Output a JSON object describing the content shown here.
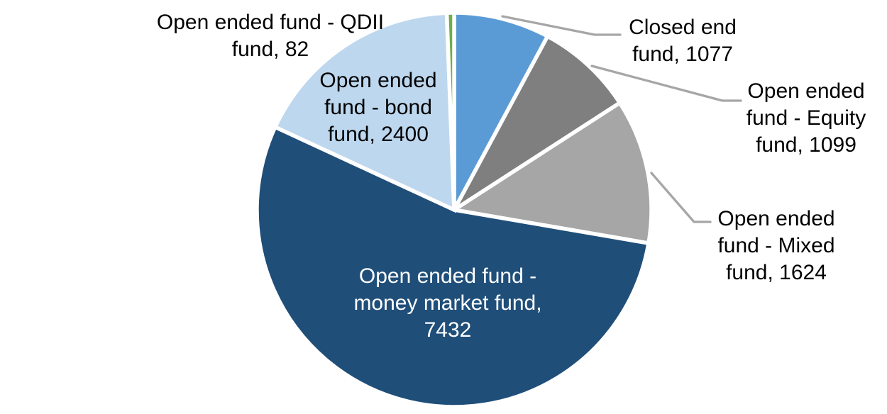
{
  "chart_data": {
    "type": "pie",
    "title": "",
    "legend": "none",
    "background": "#FFFFFF",
    "slice_border_color": "#FFFFFF",
    "leader_line_color": "#A6A6A6",
    "start_angle_deg": 0,
    "direction": "clockwise",
    "total": 13714,
    "series": [
      {
        "key": "closed-end-fund",
        "label": "Closed end fund",
        "value": 1077,
        "color": "#5B9BD5",
        "label_placement": "outside-right",
        "label_color": "#000000",
        "callout_lines": [
          "Closed end",
          "fund, 1077"
        ]
      },
      {
        "key": "equity-fund",
        "label": "Open ended fund - Equity fund",
        "value": 1099,
        "color": "#7F7F7F",
        "label_placement": "outside-right",
        "label_color": "#000000",
        "callout_lines": [
          "Open ended",
          "fund - Equity",
          "fund, 1099"
        ]
      },
      {
        "key": "mixed-fund",
        "label": "Open ended fund - Mixed fund",
        "value": 1624,
        "color": "#A6A6A6",
        "label_placement": "outside-right",
        "label_color": "#000000",
        "callout_lines": [
          "Open ended",
          "fund - Mixed",
          "fund, 1624"
        ]
      },
      {
        "key": "money-market-fund",
        "label": "Open ended fund - money market fund",
        "value": 7432,
        "color": "#1F4E79",
        "label_placement": "inside",
        "label_color": "#FFFFFF",
        "callout_lines": [
          "Open ended fund -",
          "money market fund,",
          "7432"
        ]
      },
      {
        "key": "bond-fund",
        "label": "Open ended fund - bond fund",
        "value": 2400,
        "color": "#BDD7EE",
        "label_placement": "inside",
        "label_color": "#000000",
        "callout_lines": [
          "Open ended",
          "fund - bond",
          "fund, 2400"
        ]
      },
      {
        "key": "qdii-fund",
        "label": "Open ended fund - QDII fund",
        "value": 82,
        "color": "#70AD47",
        "label_placement": "outside-left",
        "label_color": "#000000",
        "callout_lines": [
          "Open ended fund - QDII",
          "fund, 82"
        ]
      }
    ]
  }
}
